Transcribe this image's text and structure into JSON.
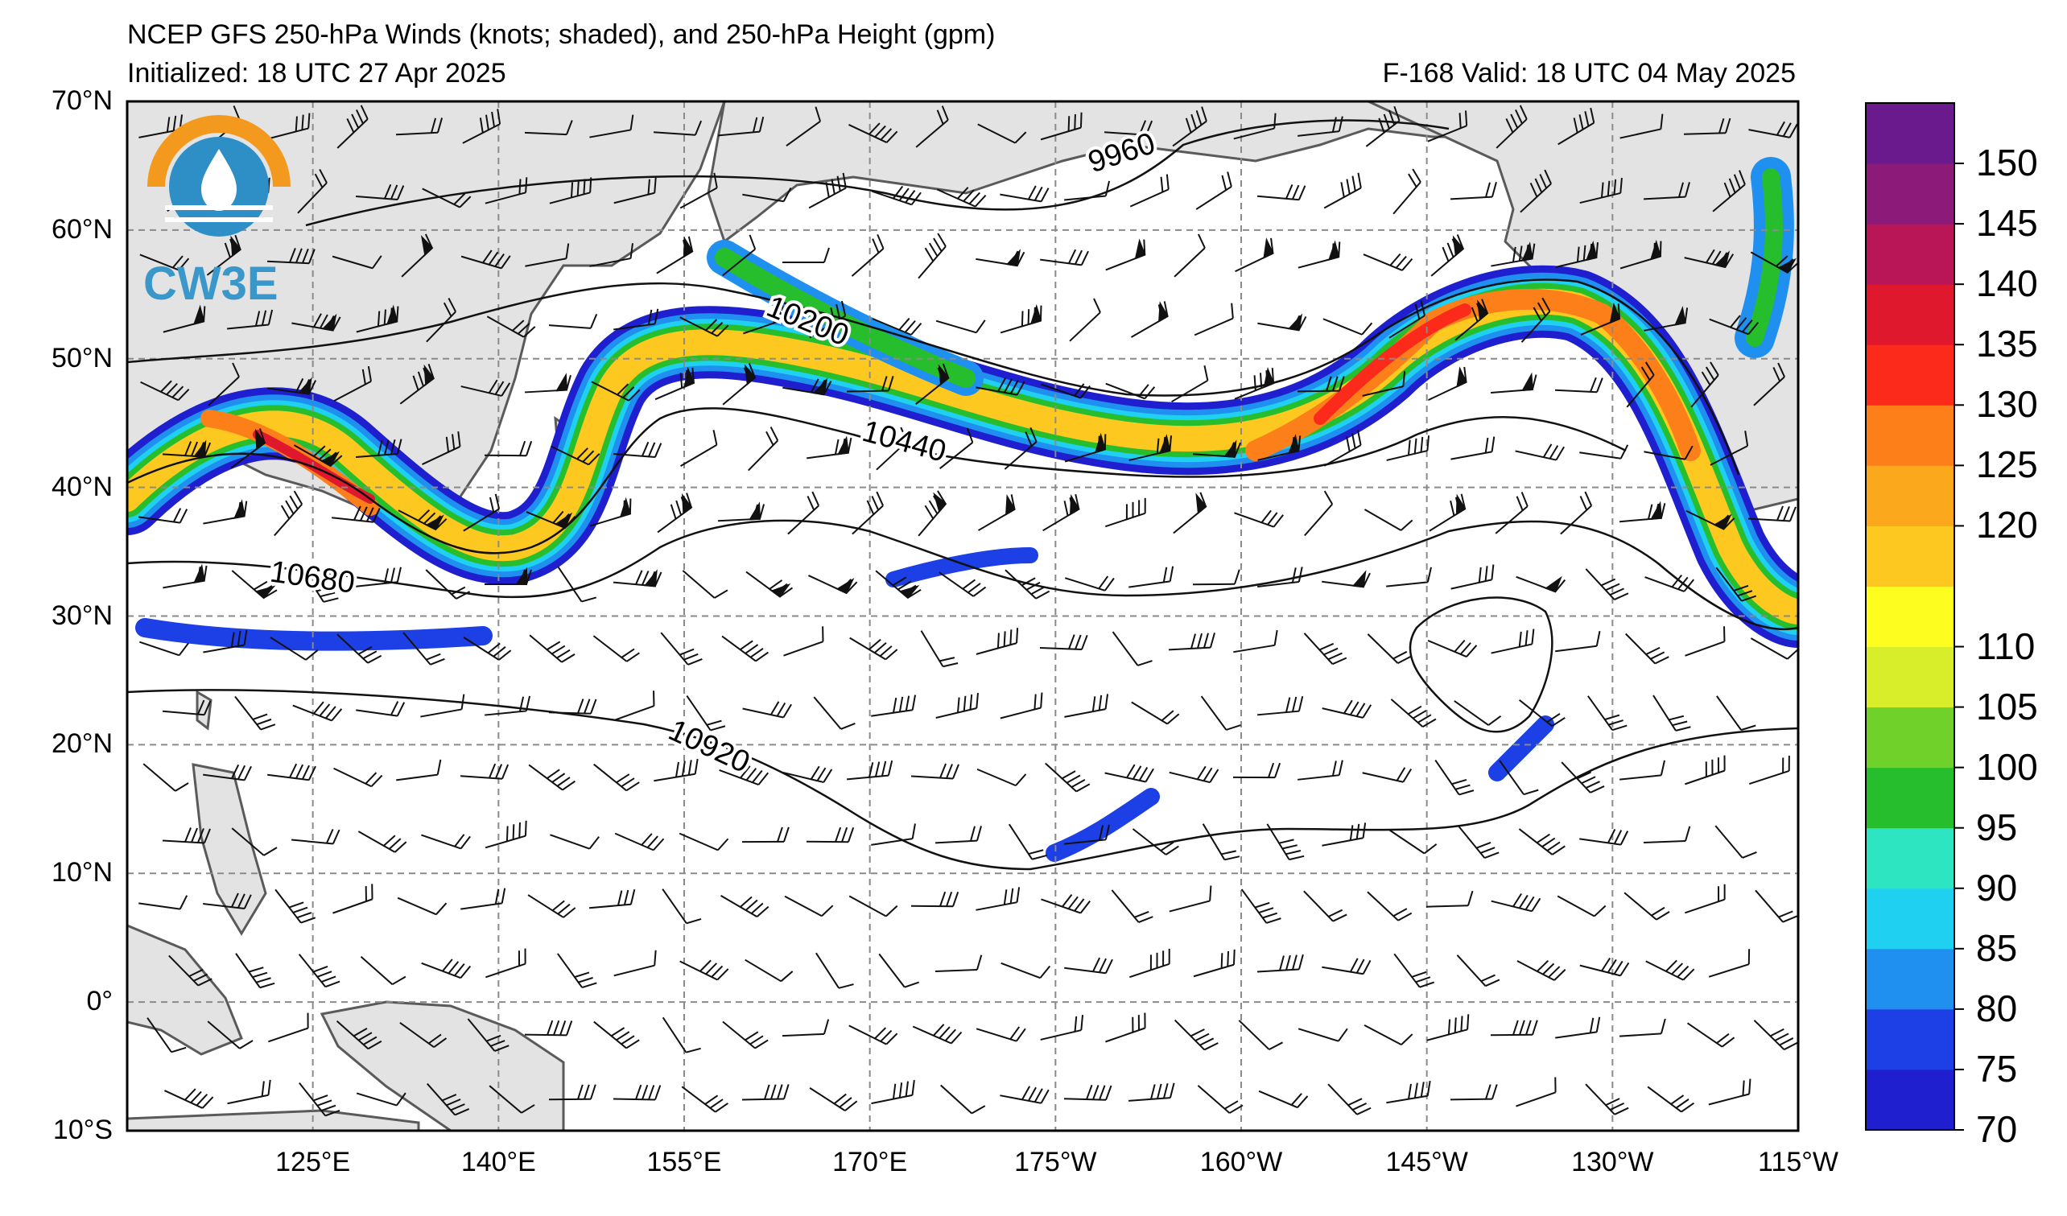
{
  "header": {
    "title": "NCEP GFS 250-hPa Winds (knots; shaded), and 250-hPa Height (gpm)",
    "initialized": "Initialized: 18 UTC 27 Apr 2025",
    "valid": "F-168  Valid: 18 UTC 04 May 2025"
  },
  "logo": {
    "text": "CW3E",
    "colors": {
      "ring": "#f39a1e",
      "globe": "#2e8fc6",
      "text": "#3a97c9"
    }
  },
  "axes": {
    "lat_labels": [
      "70°N",
      "60°N",
      "50°N",
      "40°N",
      "30°N",
      "20°N",
      "10°N",
      "0°",
      "10°S"
    ],
    "lon_labels": [
      "125°E",
      "140°E",
      "155°E",
      "170°E",
      "175°W",
      "160°W",
      "145°W",
      "130°W",
      "115°W"
    ],
    "lat_values": [
      70,
      60,
      50,
      40,
      30,
      20,
      10,
      0,
      -10
    ],
    "lon_values": [
      125,
      140,
      155,
      170,
      185,
      200,
      215,
      230,
      245
    ],
    "lon_range": [
      110,
      245
    ],
    "lat_range": [
      -10,
      70
    ]
  },
  "contours": {
    "labels": [
      "9960",
      "10200",
      "10440",
      "10680",
      "10920"
    ],
    "label_lats_approx": [
      64,
      52,
      42,
      33,
      19
    ]
  },
  "colorbar": {
    "labels": [
      "70",
      "75",
      "80",
      "85",
      "90",
      "95",
      "100",
      "105",
      "110",
      "120",
      "125",
      "130",
      "135",
      "140",
      "145",
      "150"
    ],
    "levels": [
      70,
      75,
      80,
      85,
      90,
      95,
      100,
      105,
      110,
      115,
      120,
      125,
      130,
      135,
      140,
      145,
      150,
      155
    ],
    "colors": [
      "#1f1fcf",
      "#1c3fe6",
      "#1f8ff0",
      "#1fd0f0",
      "#2de5c0",
      "#27be2e",
      "#6fd12a",
      "#d8ee2a",
      "#fdfd20",
      "#fdc820",
      "#fca81c",
      "#fc7f1a",
      "#fc2a1a",
      "#e0182e",
      "#b81656",
      "#8c1a78",
      "#6a1a8c"
    ],
    "unit": "knots"
  },
  "colors": {
    "land": "#e3e3e3",
    "coast": "#5a5a5a",
    "grid": "#8a8a8a"
  }
}
